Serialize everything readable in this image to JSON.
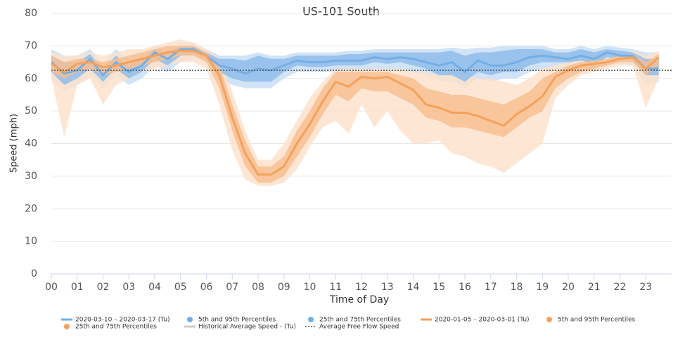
{
  "chart_data": {
    "type": "line",
    "title": "US-101 South",
    "y_label": "Speed (mph)",
    "x_label": "Time of Day",
    "xlim": [
      0,
      24
    ],
    "xticks": [
      {
        "value": 0,
        "label": "00"
      },
      {
        "value": 1,
        "label": "01"
      },
      {
        "value": 2,
        "label": "02"
      },
      {
        "value": 3,
        "label": "03"
      },
      {
        "value": 4,
        "label": "04"
      },
      {
        "value": 5,
        "label": "05"
      },
      {
        "value": 6,
        "label": "06"
      },
      {
        "value": 7,
        "label": "07"
      },
      {
        "value": 8,
        "label": "08"
      },
      {
        "value": 9,
        "label": "09"
      },
      10,
      11,
      12,
      13,
      14,
      15,
      16,
      17,
      18,
      19,
      20,
      21,
      22,
      23
    ],
    "ylim": [
      0,
      80
    ],
    "yticks": [
      0,
      10,
      20,
      30,
      40,
      50,
      60,
      70,
      80
    ],
    "grid": true,
    "legend": "bottom",
    "x": [
      0,
      0.5,
      1,
      1.5,
      2,
      2.5,
      3,
      3.5,
      4,
      4.5,
      5,
      5.5,
      6,
      6.5,
      7,
      7.5,
      8,
      8.5,
      9,
      9.5,
      10,
      10.5,
      11,
      11.5,
      12,
      12.5,
      13,
      13.5,
      14,
      14.5,
      15,
      15.5,
      16,
      16.5,
      17,
      17.5,
      18,
      18.5,
      19,
      19.5,
      20,
      20.5,
      21,
      21.5,
      22,
      22.5,
      23,
      23.5
    ],
    "series": [
      {
        "name": "2020-03-10 – 2020-03-17 (Tu)",
        "kind": "line",
        "color": "#74aee6",
        "values": [
          65,
          61.5,
          62.5,
          66,
          61,
          65,
          62,
          64,
          68,
          66,
          69,
          69,
          67,
          64,
          63,
          61.5,
          63,
          62.5,
          64,
          65.5,
          65,
          65,
          65.5,
          65.5,
          65.5,
          66.5,
          66,
          66.5,
          66,
          65,
          64,
          65,
          62,
          65.5,
          64,
          64,
          65,
          66.5,
          67,
          66.5,
          66,
          67,
          66,
          68,
          67,
          67,
          63,
          63
        ]
      },
      {
        "name": "5th and 95th Percentiles",
        "kind": "band",
        "color": "#c9def5",
        "low": [
          60,
          56,
          58,
          61,
          57,
          61,
          58,
          60,
          64,
          62,
          65,
          66,
          65,
          60,
          58,
          57,
          57,
          57,
          60,
          62,
          62,
          62,
          62,
          62,
          62,
          63,
          63,
          63,
          62,
          61,
          59,
          59,
          57,
          60,
          59,
          60,
          60,
          62,
          63,
          63,
          63,
          64,
          63,
          65,
          64.5,
          64,
          58,
          59
        ],
        "high": [
          69,
          67,
          67,
          69,
          65,
          69,
          66,
          68,
          70,
          69,
          71,
          71,
          69,
          67,
          67,
          67,
          68,
          67,
          67,
          68,
          68,
          68,
          68,
          68.5,
          68.5,
          69,
          69,
          69,
          69,
          69,
          69,
          69.5,
          69,
          69.5,
          69.5,
          70,
          70,
          70,
          70,
          69,
          69,
          70,
          69,
          70,
          69.5,
          69,
          68,
          68
        ]
      },
      {
        "name": "25th and 75th Percentiles",
        "kind": "band",
        "color": "#8fbdea",
        "low": [
          62,
          58,
          60,
          63,
          59,
          63,
          60,
          62,
          66,
          64,
          67,
          67.5,
          66,
          62,
          60,
          59,
          59,
          59,
          62,
          64,
          63.5,
          63.5,
          64,
          64,
          64,
          65,
          64.5,
          65,
          64,
          63,
          61,
          61,
          59,
          62,
          61,
          62,
          62,
          64,
          65,
          65,
          65,
          65.5,
          64.5,
          66.5,
          66,
          65.5,
          61,
          61
        ],
        "high": [
          67,
          65,
          65,
          67.5,
          63,
          67,
          64,
          66,
          69,
          68,
          70,
          70,
          68,
          66,
          66,
          65.5,
          67,
          66,
          66,
          67,
          67,
          67,
          67,
          67.5,
          67.5,
          68,
          68,
          68,
          68,
          68,
          68,
          68.5,
          67,
          68,
          68,
          68.5,
          69,
          69,
          69,
          68,
          68,
          69,
          68,
          69,
          68.5,
          68,
          66,
          66
        ]
      },
      {
        "name": "2020-01-05 – 2020-03-01 (Tu)",
        "kind": "line",
        "color": "#f4a15b",
        "values": [
          64.5,
          62,
          64.5,
          65,
          63.5,
          64,
          65,
          66,
          67,
          68,
          68.5,
          68.5,
          67,
          61,
          48,
          37,
          30.5,
          30.5,
          33,
          40,
          46,
          53,
          59,
          57.5,
          60.5,
          60,
          60.5,
          58.5,
          56.5,
          52,
          51,
          49.5,
          49.5,
          48.5,
          47,
          45.5,
          49,
          51.5,
          54.5,
          60.5,
          62.5,
          64,
          64.5,
          65,
          66,
          66.5,
          63,
          66.5
        ]
      },
      {
        "name": "5th and 95th Percentiles",
        "kind": "band",
        "color": "#fde2cd",
        "low": [
          60,
          42,
          58,
          60,
          52,
          58,
          60,
          62,
          63,
          64,
          65,
          65,
          63,
          52,
          38,
          29,
          27,
          27,
          28,
          32,
          39,
          45,
          47,
          43,
          52,
          45,
          50,
          44,
          40,
          40,
          41,
          37,
          36,
          34,
          33,
          31,
          34,
          37,
          40,
          54,
          58,
          61,
          62,
          63,
          64,
          64,
          51,
          60
        ],
        "high": [
          68,
          67,
          67,
          68,
          67,
          68,
          69,
          69,
          70,
          71,
          72,
          71,
          69,
          66,
          56,
          44,
          35,
          35,
          40,
          47,
          54,
          59,
          63,
          63,
          63,
          63,
          63,
          63,
          62,
          62,
          61,
          61,
          61,
          60,
          60,
          59,
          58,
          60,
          63,
          64,
          65,
          66,
          66.5,
          67,
          68,
          68.5,
          67,
          68.5
        ]
      },
      {
        "name": "25th and 75th Percentiles",
        "kind": "band",
        "color": "#f8be90",
        "low": [
          62,
          60,
          62,
          63,
          61,
          62,
          63,
          64,
          65,
          66,
          67,
          67,
          65,
          57,
          44,
          33,
          28,
          28,
          30,
          36,
          42,
          49,
          55,
          53,
          57,
          56,
          56,
          54,
          52,
          48,
          47,
          45,
          45,
          44,
          43,
          42,
          45,
          48,
          50,
          57,
          60,
          62,
          63,
          64,
          65,
          65,
          61,
          64
        ],
        "high": [
          67,
          65,
          66,
          66,
          65,
          66,
          67,
          68,
          69,
          70,
          70,
          70,
          68,
          64,
          52,
          41,
          33,
          33,
          36,
          44,
          50,
          57,
          62,
          62,
          62,
          62,
          62,
          61,
          60,
          57,
          56,
          55,
          55,
          54,
          53,
          52,
          54,
          56,
          60,
          62,
          64,
          65,
          65.5,
          66,
          67,
          67.5,
          65,
          67.5
        ]
      },
      {
        "name": "Historical Average Speed - (Tu)",
        "kind": "line",
        "color": "#cccccc",
        "visible": false
      },
      {
        "name": "Average Free Flow Speed",
        "kind": "reference",
        "color": "#555555",
        "dash": "dotted",
        "value": 62.5
      }
    ]
  }
}
